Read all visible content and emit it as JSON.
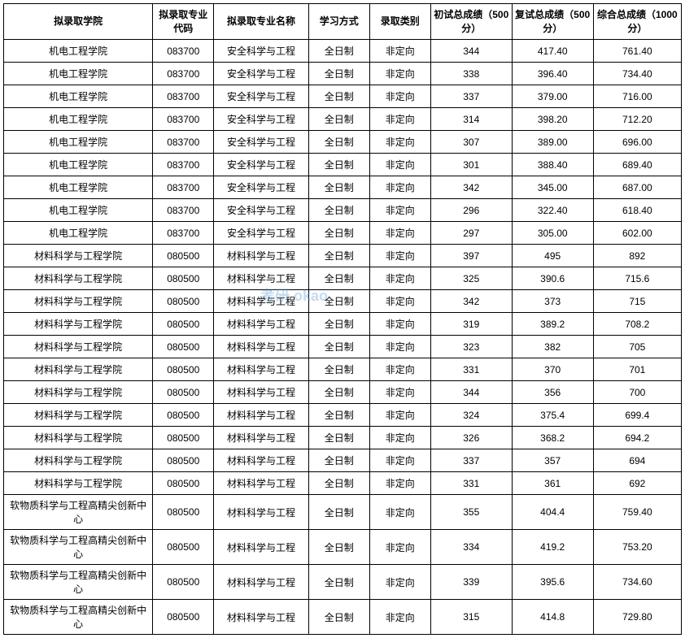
{
  "table": {
    "columns": [
      "拟录取学院",
      "拟录取专业代码",
      "拟录取专业名称",
      "学习方式",
      "录取类别",
      "初试总成绩（500分）",
      "复试总成绩（500分）",
      "综合总成绩（1000分）"
    ],
    "column_classes": [
      "col-0",
      "col-1",
      "col-2",
      "col-3",
      "col-4",
      "col-5",
      "col-6",
      "col-7"
    ],
    "rows": [
      [
        "机电工程学院",
        "083700",
        "安全科学与工程",
        "全日制",
        "非定向",
        "344",
        "417.40",
        "761.40"
      ],
      [
        "机电工程学院",
        "083700",
        "安全科学与工程",
        "全日制",
        "非定向",
        "338",
        "396.40",
        "734.40"
      ],
      [
        "机电工程学院",
        "083700",
        "安全科学与工程",
        "全日制",
        "非定向",
        "337",
        "379.00",
        "716.00"
      ],
      [
        "机电工程学院",
        "083700",
        "安全科学与工程",
        "全日制",
        "非定向",
        "314",
        "398.20",
        "712.20"
      ],
      [
        "机电工程学院",
        "083700",
        "安全科学与工程",
        "全日制",
        "非定向",
        "307",
        "389.00",
        "696.00"
      ],
      [
        "机电工程学院",
        "083700",
        "安全科学与工程",
        "全日制",
        "非定向",
        "301",
        "388.40",
        "689.40"
      ],
      [
        "机电工程学院",
        "083700",
        "安全科学与工程",
        "全日制",
        "非定向",
        "342",
        "345.00",
        "687.00"
      ],
      [
        "机电工程学院",
        "083700",
        "安全科学与工程",
        "全日制",
        "非定向",
        "296",
        "322.40",
        "618.40"
      ],
      [
        "机电工程学院",
        "083700",
        "安全科学与工程",
        "全日制",
        "非定向",
        "297",
        "305.00",
        "602.00"
      ],
      [
        "材料科学与工程学院",
        "080500",
        "材料科学与工程",
        "全日制",
        "非定向",
        "397",
        "495",
        "892"
      ],
      [
        "材料科学与工程学院",
        "080500",
        "材料科学与工程",
        "全日制",
        "非定向",
        "325",
        "390.6",
        "715.6"
      ],
      [
        "材料科学与工程学院",
        "080500",
        "材料科学与工程",
        "全日制",
        "非定向",
        "342",
        "373",
        "715"
      ],
      [
        "材料科学与工程学院",
        "080500",
        "材料科学与工程",
        "全日制",
        "非定向",
        "319",
        "389.2",
        "708.2"
      ],
      [
        "材料科学与工程学院",
        "080500",
        "材料科学与工程",
        "全日制",
        "非定向",
        "323",
        "382",
        "705"
      ],
      [
        "材料科学与工程学院",
        "080500",
        "材料科学与工程",
        "全日制",
        "非定向",
        "331",
        "370",
        "701"
      ],
      [
        "材料科学与工程学院",
        "080500",
        "材料科学与工程",
        "全日制",
        "非定向",
        "344",
        "356",
        "700"
      ],
      [
        "材料科学与工程学院",
        "080500",
        "材料科学与工程",
        "全日制",
        "非定向",
        "324",
        "375.4",
        "699.4"
      ],
      [
        "材料科学与工程学院",
        "080500",
        "材料科学与工程",
        "全日制",
        "非定向",
        "326",
        "368.2",
        "694.2"
      ],
      [
        "材料科学与工程学院",
        "080500",
        "材料科学与工程",
        "全日制",
        "非定向",
        "337",
        "357",
        "694"
      ],
      [
        "材料科学与工程学院",
        "080500",
        "材料科学与工程",
        "全日制",
        "非定向",
        "331",
        "361",
        "692"
      ],
      [
        "软物质科学与工程高精尖创新中心",
        "080500",
        "材料科学与工程",
        "全日制",
        "非定向",
        "355",
        "404.4",
        "759.40"
      ],
      [
        "软物质科学与工程高精尖创新中心",
        "080500",
        "材料科学与工程",
        "全日制",
        "非定向",
        "334",
        "419.2",
        "753.20"
      ],
      [
        "软物质科学与工程高精尖创新中心",
        "080500",
        "材料科学与工程",
        "全日制",
        "非定向",
        "339",
        "395.6",
        "734.60"
      ],
      [
        "软物质科学与工程高精尖创新中心",
        "080500",
        "材料科学与工程",
        "全日制",
        "非定向",
        "315",
        "414.8",
        "729.80"
      ]
    ],
    "border_color": "#000000",
    "background_color": "#ffffff",
    "header_font_weight": "bold",
    "font_size": 12,
    "text_align": "center"
  },
  "watermark": {
    "text": "考研 okao",
    "color": "#5b9bd5",
    "opacity": 0.35
  }
}
